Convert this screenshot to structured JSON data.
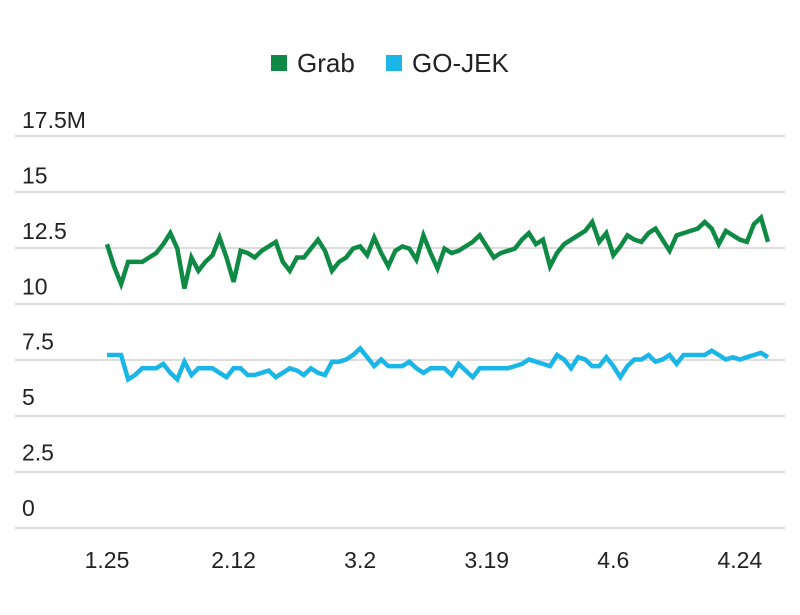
{
  "chart_data": {
    "type": "line",
    "title": "",
    "xlabel": "",
    "ylabel": "",
    "ylim": [
      0,
      17.5
    ],
    "y_ticks": [
      "0",
      "2.5",
      "5",
      "7.5",
      "10",
      "12.5",
      "15",
      "17.5M"
    ],
    "y_tick_values": [
      0,
      2.5,
      5,
      7.5,
      10,
      12.5,
      15,
      17.5
    ],
    "x_ticks": [
      "1.25",
      "2.12",
      "3.2",
      "3.19",
      "4.6",
      "4.24"
    ],
    "x_tick_positions": [
      0,
      18,
      36,
      54,
      72,
      90
    ],
    "grid": true,
    "legend_position": "top-center",
    "series": [
      {
        "name": "Grab",
        "color": "#0f8a45",
        "values": [
          11.9,
          10.9,
          10.1,
          11.1,
          11.1,
          11.1,
          11.3,
          11.5,
          11.9,
          12.4,
          11.7,
          9.9,
          11.3,
          10.7,
          11.1,
          11.4,
          12.2,
          11.3,
          10.2,
          11.6,
          11.5,
          11.3,
          11.6,
          11.8,
          12.0,
          11.1,
          10.7,
          11.3,
          11.3,
          11.7,
          12.1,
          11.6,
          10.7,
          11.1,
          11.3,
          11.7,
          11.8,
          11.4,
          12.2,
          11.5,
          10.9,
          11.6,
          11.8,
          11.7,
          11.2,
          12.3,
          11.5,
          10.8,
          11.7,
          11.5,
          11.6,
          11.8,
          12.0,
          12.3,
          11.8,
          11.3,
          11.5,
          11.6,
          11.7,
          12.1,
          12.4,
          11.9,
          12.1,
          10.9,
          11.5,
          11.9,
          12.1,
          12.3,
          12.5,
          12.9,
          12.0,
          12.4,
          11.4,
          11.8,
          12.3,
          12.1,
          12.0,
          12.4,
          12.6,
          12.1,
          11.6,
          12.3,
          12.4,
          12.5,
          12.6,
          12.9,
          12.6,
          11.9,
          12.5,
          12.3,
          12.1,
          12.0,
          12.8,
          13.1,
          12.0
        ],
        "note_unused": ""
      },
      {
        "name": "GO-JEK",
        "color": "#1ab6e8",
        "values": [
          6.9,
          6.9,
          6.9,
          5.8,
          6.0,
          6.3,
          6.3,
          6.3,
          6.5,
          6.1,
          5.8,
          6.6,
          6.0,
          6.3,
          6.3,
          6.3,
          6.1,
          5.9,
          6.3,
          6.3,
          6.0,
          6.0,
          6.1,
          6.2,
          5.9,
          6.1,
          6.3,
          6.2,
          6.0,
          6.3,
          6.1,
          6.0,
          6.6,
          6.6,
          6.7,
          6.9,
          7.2,
          6.8,
          6.4,
          6.7,
          6.4,
          6.4,
          6.4,
          6.6,
          6.3,
          6.1,
          6.3,
          6.3,
          6.3,
          6.0,
          6.5,
          6.2,
          5.9,
          6.3,
          6.3,
          6.3,
          6.3,
          6.3,
          6.4,
          6.5,
          6.7,
          6.6,
          6.5,
          6.4,
          6.9,
          6.7,
          6.3,
          6.8,
          6.7,
          6.4,
          6.4,
          6.8,
          6.4,
          5.9,
          6.4,
          6.7,
          6.7,
          6.9,
          6.6,
          6.7,
          6.9,
          6.5,
          6.9,
          6.9,
          6.9,
          6.9,
          7.1,
          6.9,
          6.7,
          6.8,
          6.7,
          6.8,
          6.9,
          7.0,
          6.8
        ]
      }
    ]
  }
}
